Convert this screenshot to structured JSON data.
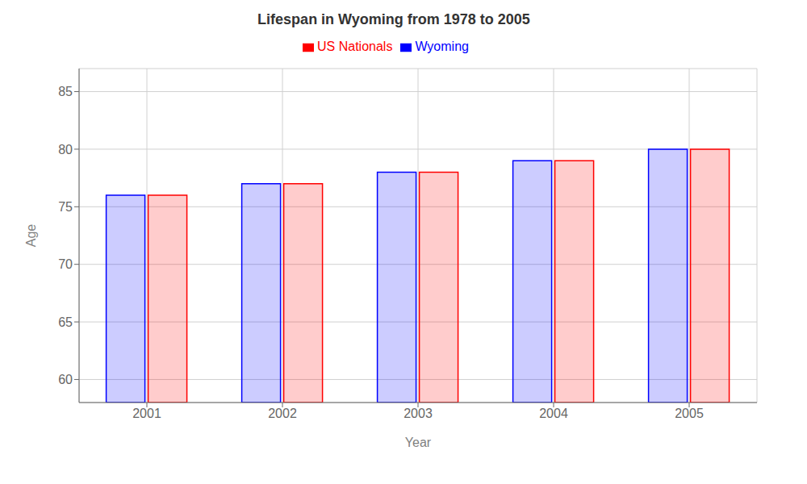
{
  "chart_data": {
    "type": "bar",
    "title": "Lifespan in Wyoming from 1978 to 2005",
    "x_label": "Year",
    "y_label": "Age",
    "categories": [
      "2001",
      "2002",
      "2003",
      "2004",
      "2005"
    ],
    "series": [
      {
        "name": "Wyoming",
        "color": "#0000ff",
        "values": [
          76,
          77,
          78,
          79,
          80
        ]
      },
      {
        "name": "US Nationals",
        "color": "#ff0000",
        "values": [
          76,
          77,
          78,
          79,
          80
        ]
      }
    ],
    "ylim": [
      58,
      87
    ],
    "yticks": [
      60,
      65,
      70,
      75,
      80,
      85
    ],
    "grid": true,
    "legend": "top"
  }
}
